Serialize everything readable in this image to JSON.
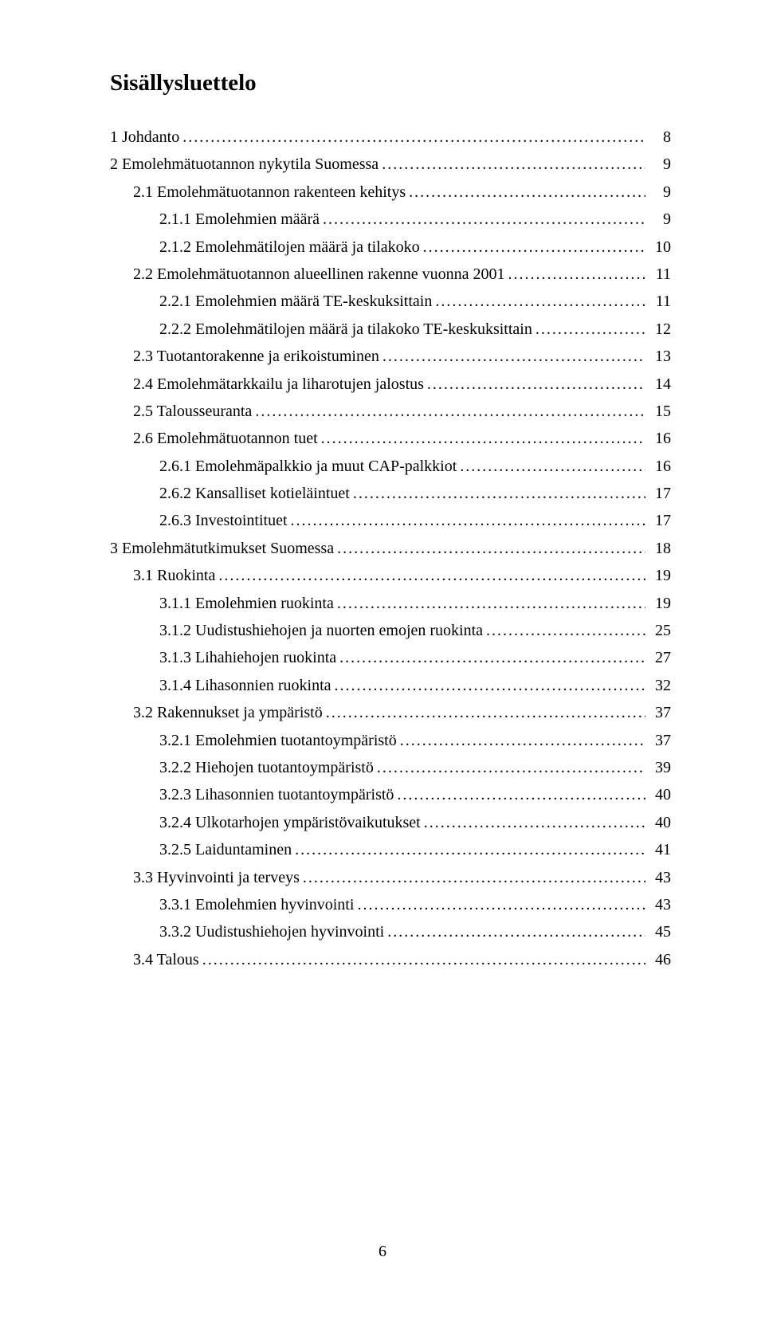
{
  "title": "Sisällysluettelo",
  "page_number": "6",
  "typography": {
    "title_fontsize_pt": 22,
    "body_fontsize_pt": 15,
    "font_family": "Times New Roman",
    "color": "#000000",
    "background": "#ffffff"
  },
  "entries": [
    {
      "indent": 0,
      "label": "1  Johdanto",
      "page": "8"
    },
    {
      "indent": 0,
      "label": "2  Emolehmätuotannon nykytila Suomessa",
      "page": "9"
    },
    {
      "indent": 1,
      "label": "2.1 Emolehmätuotannon rakenteen kehitys",
      "page": "9"
    },
    {
      "indent": 2,
      "label": "2.1.1 Emolehmien määrä",
      "page": "9"
    },
    {
      "indent": 2,
      "label": "2.1.2 Emolehmätilojen määrä ja tilakoko",
      "page": "10"
    },
    {
      "indent": 1,
      "label": "2.2 Emolehmätuotannon alueellinen rakenne vuonna 2001",
      "page": "11"
    },
    {
      "indent": 2,
      "label": "2.2.1 Emolehmien määrä TE-keskuksittain",
      "page": "11"
    },
    {
      "indent": 2,
      "label": "2.2.2 Emolehmätilojen määrä ja tilakoko TE-keskuksittain",
      "page": "12"
    },
    {
      "indent": 1,
      "label": "2.3 Tuotantorakenne ja erikoistuminen",
      "page": "13"
    },
    {
      "indent": 1,
      "label": "2.4 Emolehmätarkkailu ja liharotujen jalostus",
      "page": "14"
    },
    {
      "indent": 1,
      "label": "2.5 Talousseuranta",
      "page": "15"
    },
    {
      "indent": 1,
      "label": "2.6 Emolehmätuotannon tuet",
      "page": "16"
    },
    {
      "indent": 2,
      "label": "2.6.1 Emolehmäpalkkio ja muut CAP-palkkiot",
      "page": "16"
    },
    {
      "indent": 2,
      "label": "2.6.2 Kansalliset kotieläintuet",
      "page": "17"
    },
    {
      "indent": 2,
      "label": "2.6.3 Investointituet",
      "page": "17"
    },
    {
      "indent": 0,
      "label": "3  Emolehmätutkimukset Suomessa",
      "page": "18"
    },
    {
      "indent": 1,
      "label": "3.1 Ruokinta",
      "page": "19"
    },
    {
      "indent": 2,
      "label": "3.1.1 Emolehmien ruokinta",
      "page": "19"
    },
    {
      "indent": 2,
      "label": "3.1.2 Uudistushiehojen ja nuorten emojen ruokinta",
      "page": "25"
    },
    {
      "indent": 2,
      "label": "3.1.3 Lihahiehojen ruokinta",
      "page": "27"
    },
    {
      "indent": 2,
      "label": "3.1.4 Lihasonnien ruokinta",
      "page": "32"
    },
    {
      "indent": 1,
      "label": "3.2 Rakennukset ja ympäristö",
      "page": "37"
    },
    {
      "indent": 2,
      "label": "3.2.1 Emolehmien tuotantoympäristö",
      "page": "37"
    },
    {
      "indent": 2,
      "label": "3.2.2 Hiehojen tuotantoympäristö",
      "page": "39"
    },
    {
      "indent": 2,
      "label": "3.2.3 Lihasonnien tuotantoympäristö",
      "page": "40"
    },
    {
      "indent": 2,
      "label": "3.2.4 Ulkotarhojen ympäristövaikutukset",
      "page": "40"
    },
    {
      "indent": 2,
      "label": "3.2.5 Laiduntaminen",
      "page": "41"
    },
    {
      "indent": 1,
      "label": "3.3 Hyvinvointi ja terveys",
      "page": "43"
    },
    {
      "indent": 2,
      "label": "3.3.1 Emolehmien hyvinvointi",
      "page": "43"
    },
    {
      "indent": 2,
      "label": "3.3.2 Uudistushiehojen hyvinvointi",
      "page": "45"
    },
    {
      "indent": 1,
      "label": "3.4 Talous",
      "page": "46"
    }
  ]
}
